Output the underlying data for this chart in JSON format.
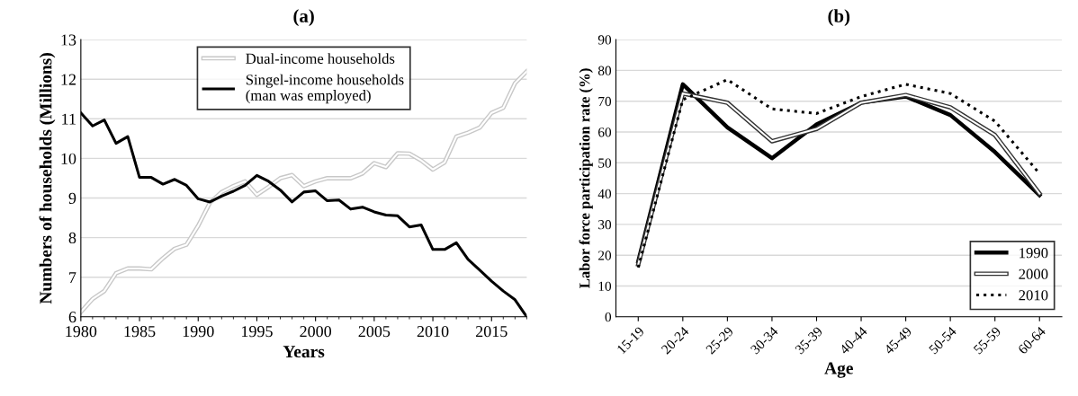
{
  "chart_data": [
    {
      "type": "line",
      "title": "(a)",
      "xlabel": "Years",
      "ylabel": "Numbers of households (Millions)",
      "x": [
        1980,
        1981,
        1982,
        1983,
        1984,
        1985,
        1986,
        1987,
        1988,
        1989,
        1990,
        1991,
        1992,
        1993,
        1994,
        1995,
        1996,
        1997,
        1998,
        1999,
        2000,
        2001,
        2002,
        2003,
        2004,
        2005,
        2006,
        2007,
        2008,
        2009,
        2010,
        2011,
        2012,
        2013,
        2014,
        2015,
        2016,
        2017,
        2018
      ],
      "series": [
        {
          "name": "Dual-income households",
          "color": "#c8c8c8",
          "values": [
            6.12,
            6.45,
            6.65,
            7.1,
            7.22,
            7.22,
            7.2,
            7.48,
            7.72,
            7.82,
            8.3,
            8.88,
            9.15,
            9.3,
            9.42,
            9.08,
            9.28,
            9.5,
            9.58,
            9.3,
            9.42,
            9.5,
            9.5,
            9.5,
            9.62,
            9.88,
            9.78,
            10.13,
            10.12,
            9.95,
            9.72,
            9.9,
            10.55,
            10.65,
            10.78,
            11.15,
            11.28,
            11.9,
            12.2
          ]
        },
        {
          "name": "Singel-income households\n(man was employed)",
          "color": "#000000",
          "values": [
            11.15,
            10.82,
            10.97,
            10.38,
            10.55,
            9.52,
            9.52,
            9.35,
            9.47,
            9.32,
            8.98,
            8.9,
            9.05,
            9.17,
            9.32,
            9.57,
            9.42,
            9.2,
            8.9,
            9.15,
            9.18,
            8.93,
            8.95,
            8.72,
            8.77,
            8.65,
            8.57,
            8.55,
            8.27,
            8.32,
            7.7,
            7.7,
            7.87,
            7.45,
            7.18,
            6.9,
            6.65,
            6.43,
            6.0
          ]
        }
      ],
      "xlim": [
        1980,
        2018
      ],
      "xticks": [
        1980,
        1985,
        1990,
        1995,
        2000,
        2005,
        2010,
        2015
      ],
      "ylim": [
        6,
        13
      ],
      "yticks": [
        6,
        7,
        8,
        9,
        10,
        11,
        12,
        13
      ],
      "grid": "y",
      "legend": "top",
      "line_style": "solid",
      "marker": "none"
    },
    {
      "type": "line",
      "title": "(b)",
      "xlabel": "Age",
      "ylabel": "Labor force participation rate (%)",
      "categories": [
        "15-19",
        "20-24",
        "25-29",
        "30-34",
        "35-39",
        "40-44",
        "45-49",
        "50-54",
        "55-59",
        "60-64"
      ],
      "series": [
        {
          "name": "1990",
          "color": "#000000",
          "line_style": "solid",
          "values": [
            18,
            75.5,
            61.5,
            51.5,
            62.5,
            69.5,
            71.5,
            65.5,
            53.5,
            39.5
          ]
        },
        {
          "name": "2000",
          "color": "#333333",
          "line_style": "solid",
          "values": [
            17,
            72.5,
            69.5,
            57,
            61,
            69.5,
            72,
            68,
            59,
            40
          ]
        },
        {
          "name": "2010",
          "color": "#000000",
          "line_style": "dotted",
          "values": [
            16,
            70.5,
            77,
            67.5,
            66,
            71.5,
            75.5,
            72.5,
            63.5,
            46.5
          ]
        }
      ],
      "ylim": [
        0,
        90
      ],
      "yticks": [
        0,
        10,
        20,
        30,
        40,
        50,
        60,
        70,
        80,
        90
      ],
      "grid": "y",
      "legend": "bottom right",
      "marker": "none"
    }
  ]
}
